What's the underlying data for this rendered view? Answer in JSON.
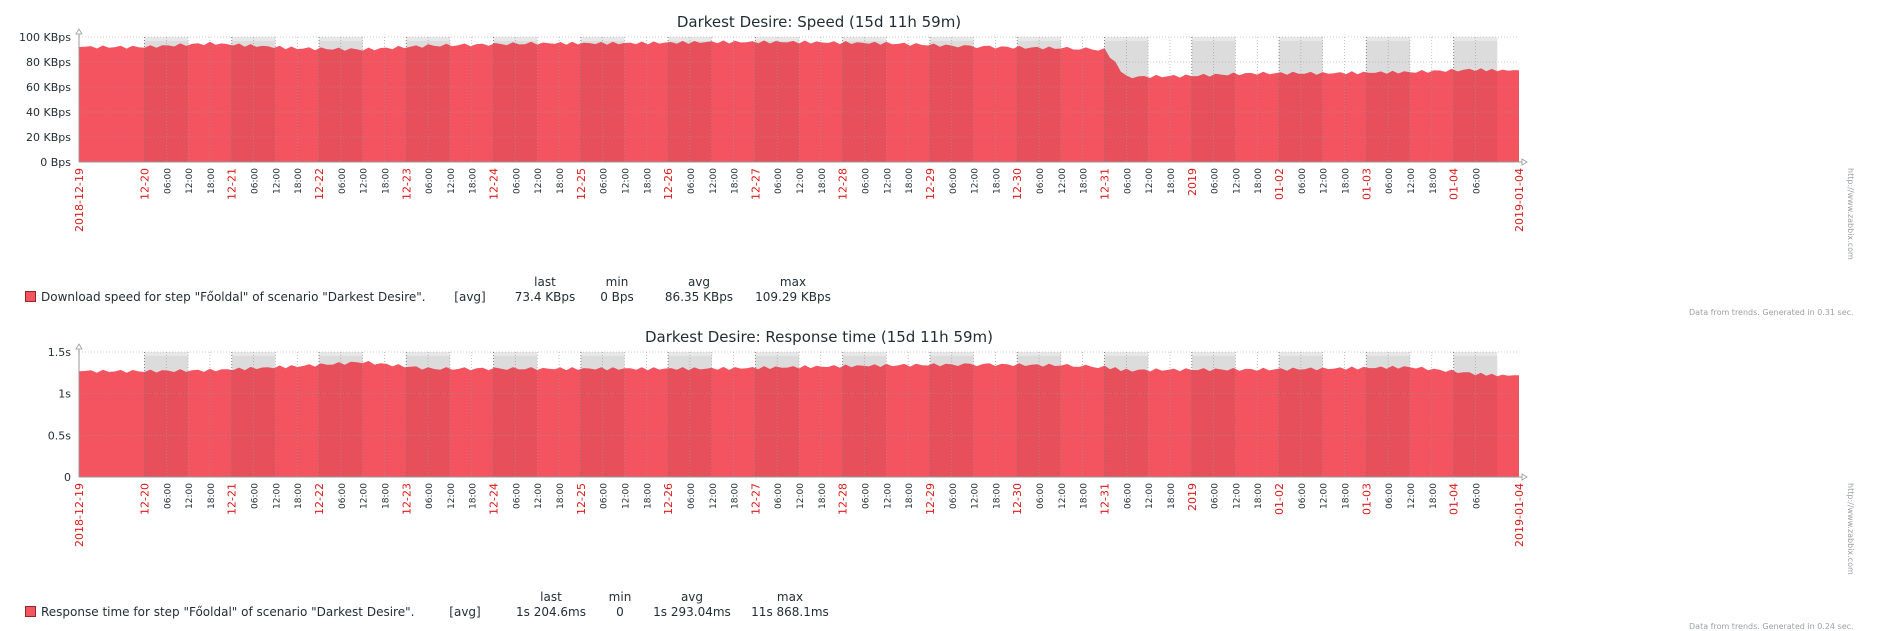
{
  "colors": {
    "series_fill": "#f4545f",
    "night_fill": "#e0545f",
    "grid": "#999999",
    "major_tick": "#dc1a1a",
    "band": "#e8e8e8"
  },
  "x_ticks": [
    {
      "label": "2018-12-19",
      "major": true,
      "edge": true
    },
    {
      "label": "12-20",
      "major": true
    },
    {
      "label": "06:00"
    },
    {
      "label": "12:00"
    },
    {
      "label": "18:00"
    },
    {
      "label": "12-21",
      "major": true
    },
    {
      "label": "06:00"
    },
    {
      "label": "12:00"
    },
    {
      "label": "18:00"
    },
    {
      "label": "12-22",
      "major": true
    },
    {
      "label": "06:00"
    },
    {
      "label": "12:00"
    },
    {
      "label": "18:00"
    },
    {
      "label": "12-23",
      "major": true
    },
    {
      "label": "06:00"
    },
    {
      "label": "12:00"
    },
    {
      "label": "18:00"
    },
    {
      "label": "12-24",
      "major": true
    },
    {
      "label": "06:00"
    },
    {
      "label": "12:00"
    },
    {
      "label": "18:00"
    },
    {
      "label": "12-25",
      "major": true
    },
    {
      "label": "06:00"
    },
    {
      "label": "12:00"
    },
    {
      "label": "18:00"
    },
    {
      "label": "12-26",
      "major": true
    },
    {
      "label": "06:00"
    },
    {
      "label": "12:00"
    },
    {
      "label": "18:00"
    },
    {
      "label": "12-27",
      "major": true
    },
    {
      "label": "06:00"
    },
    {
      "label": "12:00"
    },
    {
      "label": "18:00"
    },
    {
      "label": "12-28",
      "major": true
    },
    {
      "label": "06:00"
    },
    {
      "label": "12:00"
    },
    {
      "label": "18:00"
    },
    {
      "label": "12-29",
      "major": true
    },
    {
      "label": "06:00"
    },
    {
      "label": "12:00"
    },
    {
      "label": "18:00"
    },
    {
      "label": "12-30",
      "major": true
    },
    {
      "label": "06:00"
    },
    {
      "label": "12:00"
    },
    {
      "label": "18:00"
    },
    {
      "label": "12-31",
      "major": true
    },
    {
      "label": "06:00"
    },
    {
      "label": "12:00"
    },
    {
      "label": "18:00"
    },
    {
      "label": "2019",
      "major": true
    },
    {
      "label": "06:00"
    },
    {
      "label": "12:00"
    },
    {
      "label": "18:00"
    },
    {
      "label": "01-02",
      "major": true
    },
    {
      "label": "06:00"
    },
    {
      "label": "12:00"
    },
    {
      "label": "18:00"
    },
    {
      "label": "01-03",
      "major": true
    },
    {
      "label": "06:00"
    },
    {
      "label": "12:00"
    },
    {
      "label": "18:00"
    },
    {
      "label": "01-04",
      "major": true
    },
    {
      "label": "06:00"
    },
    {
      "label": "2019-01-04",
      "major": true,
      "edge": true
    }
  ],
  "chart_data": [
    {
      "type": "area",
      "title": "Darkest Desire: Speed (15d 11h 59m)",
      "x_range": [
        "2018-12-19",
        "2019-01-04"
      ],
      "ylim": [
        0,
        100
      ],
      "y_ticks": [
        "0 Bps",
        "20 KBps",
        "40 KBps",
        "60 KBps",
        "80 KBps",
        "100 KBps"
      ],
      "series": [
        {
          "x": [
            "2018-12-19 18:00",
            "2018-12-20 12:00",
            "2018-12-21 12:00",
            "2018-12-22 06:00",
            "2018-12-23 00:00",
            "2018-12-24 06:00",
            "2018-12-25 06:00",
            "2018-12-26 06:00",
            "2018-12-27 06:00",
            "2018-12-28 06:00",
            "2018-12-29 00:00",
            "2018-12-29 12:00",
            "2018-12-30 06:00",
            "2018-12-30 18:00",
            "2018-12-31 00:00",
            "2018-12-31 18:00",
            "2019-01-01 12:00",
            "2019-01-02 06:00",
            "2019-01-03 06:00",
            "2019-01-04 00:00",
            "2019-01-04 06:00"
          ],
          "values": [
            92,
            95,
            91,
            90,
            93,
            95,
            95,
            96,
            96,
            95,
            93,
            92,
            91,
            90,
            68,
            69,
            71,
            71,
            72,
            74,
            73.4
          ]
        }
      ],
      "legend": {
        "headers": [
          "last",
          "min",
          "avg",
          "max"
        ],
        "name": "Download speed for step \"Főoldal\" of scenario \"Darkest Desire\".",
        "func": "[avg]",
        "values": [
          "73.4 KBps",
          "0 Bps",
          "86.35 KBps",
          "109.29 KBps"
        ]
      },
      "footer": "Data from trends. Generated in 0.31 sec."
    },
    {
      "type": "area",
      "title": "Darkest Desire: Response time (15d 11h 59m)",
      "x_range": [
        "2018-12-19",
        "2019-01-04"
      ],
      "ylim": [
        0,
        1.5
      ],
      "y_ticks": [
        "0",
        "0.5s",
        "1s",
        "1.5s"
      ],
      "series": [
        {
          "x": [
            "2018-12-19 18:00",
            "2018-12-20 12:00",
            "2018-12-21 12:00",
            "2018-12-22 06:00",
            "2018-12-23 00:00",
            "2018-12-24 06:00",
            "2018-12-25 06:00",
            "2018-12-26 06:00",
            "2018-12-27 06:00",
            "2018-12-28 06:00",
            "2018-12-29 00:00",
            "2018-12-29 12:00",
            "2018-12-30 06:00",
            "2018-12-30 18:00",
            "2018-12-31 00:00",
            "2018-12-31 18:00",
            "2019-01-01 12:00",
            "2019-01-02 06:00",
            "2019-01-03 06:00",
            "2019-01-04 00:00",
            "2019-01-04 06:00"
          ],
          "values": [
            1.27,
            1.28,
            1.33,
            1.38,
            1.3,
            1.3,
            1.3,
            1.3,
            1.32,
            1.34,
            1.35,
            1.35,
            1.34,
            1.32,
            1.28,
            1.29,
            1.29,
            1.3,
            1.32,
            1.24,
            1.22
          ]
        }
      ],
      "legend": {
        "headers": [
          "last",
          "min",
          "avg",
          "max"
        ],
        "name": "Response time for step \"Főoldal\" of scenario \"Darkest Desire\".",
        "func": "[avg]",
        "values": [
          "1s 204.6ms",
          "0",
          "1s 293.04ms",
          "11s 868.1ms"
        ]
      },
      "footer": "Data from trends. Generated in 0.24 sec."
    }
  ],
  "side_label": "http://www.zabbix.com"
}
